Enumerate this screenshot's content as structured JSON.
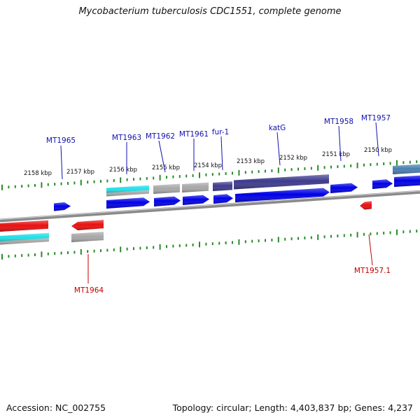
{
  "title": "Mycobacterium tuberculosis CDC1551, complete genome",
  "footer": {
    "accession": "Accession: NC_002755",
    "summary": "Topology: circular; Length: 4,403,837 bp; Genes: 4,237"
  },
  "colors": {
    "tick": "#2a8a2a",
    "backbone": "#8a8a8a",
    "label_forward": "#1010b0",
    "label_reverse": "#c00000",
    "gene_blue": "#0000e6",
    "gene_cyan": "#22e0e8",
    "gene_gray": "#a8a8a8",
    "gene_indigo": "#3d3a8e",
    "gene_red": "#e81010",
    "gene_steel": "#4a7fb0"
  },
  "scale": {
    "unit": "kbp",
    "tick_labels": [
      "2158 kbp",
      "2157 kbp",
      "2156 kbp",
      "2155 kbp",
      "2154 kbp",
      "2153 kbp",
      "2152 kbp",
      "2151 kbp",
      "2150 kbp"
    ]
  },
  "genes": {
    "forward_labels": [
      "MT1965",
      "MT1963",
      "MT1962",
      "MT1961",
      "fur-1",
      "katG",
      "MT1958",
      "MT1957"
    ],
    "reverse_labels": [
      "MT1964",
      "MT1957.1"
    ]
  }
}
